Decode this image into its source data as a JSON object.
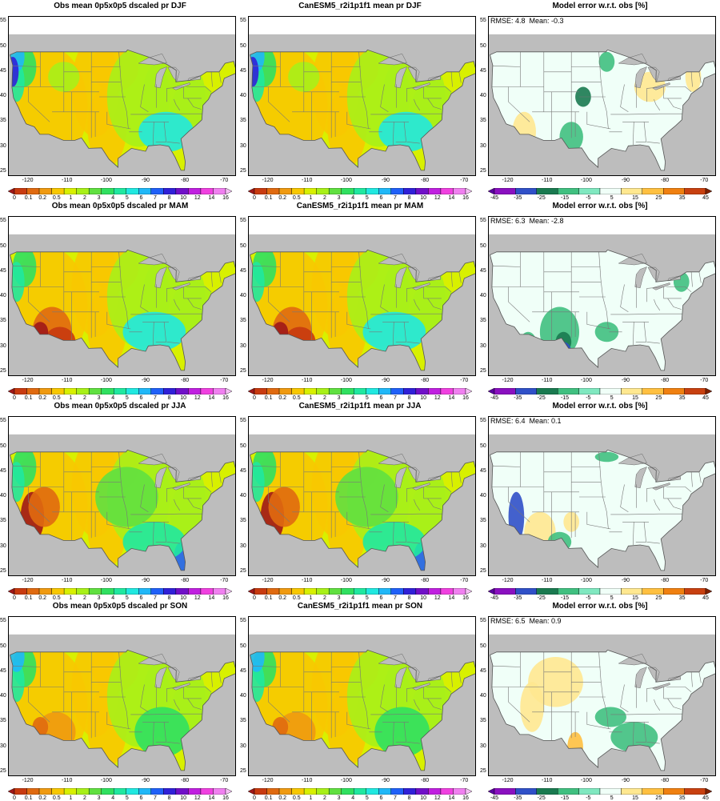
{
  "rows": [
    {
      "season": "DJF",
      "panels": [
        {
          "kind": "obs",
          "title": "Obs mean 0p5x0p5 dscaled pr DJF"
        },
        {
          "kind": "model",
          "title": "CanESM5_r2i1p1f1 mean pr DJF"
        },
        {
          "kind": "error",
          "title": "Model error w.r.t. obs [%]",
          "stats": "RMSE: 4.8  Mean: -0.3"
        }
      ]
    },
    {
      "season": "MAM",
      "panels": [
        {
          "kind": "obs",
          "title": "Obs mean 0p5x0p5 dscaled pr MAM"
        },
        {
          "kind": "model",
          "title": "CanESM5_r2i1p1f1 mean pr MAM"
        },
        {
          "kind": "error",
          "title": "Model error w.r.t. obs [%]",
          "stats": "RMSE: 6.3  Mean: -2.8"
        }
      ]
    },
    {
      "season": "JJA",
      "panels": [
        {
          "kind": "obs",
          "title": "Obs mean 0p5x0p5 dscaled pr JJA"
        },
        {
          "kind": "model",
          "title": "CanESM5_r2i1p1f1 mean pr JJA"
        },
        {
          "kind": "error",
          "title": "Model error w.r.t. obs [%]",
          "stats": "RMSE: 6.4  Mean: 0.1"
        }
      ]
    },
    {
      "season": "SON",
      "panels": [
        {
          "kind": "obs",
          "title": "Obs mean 0p5x0p5 dscaled pr SON"
        },
        {
          "kind": "model",
          "title": "CanESM5_r2i1p1f1 mean pr SON"
        },
        {
          "kind": "error",
          "title": "Model error w.r.t. obs [%]",
          "stats": "RMSE: 6.5  Mean: 0.9"
        }
      ]
    }
  ],
  "axes": {
    "lat_ticks": [
      "55",
      "50",
      "45",
      "40",
      "35",
      "30",
      "25"
    ],
    "lon_ticks": [
      "-120",
      "-110",
      "-100",
      "-90",
      "-80",
      "-70"
    ]
  },
  "precip_scale": {
    "labels": [
      "0",
      "0.1",
      "0.2",
      "0.5",
      "1",
      "2",
      "3",
      "4",
      "5",
      "6",
      "7",
      "8",
      "10",
      "12",
      "14",
      "16"
    ],
    "colors": [
      "#a01818",
      "#c83a10",
      "#e06a10",
      "#f09a10",
      "#f8c800",
      "#d8f000",
      "#a8f018",
      "#60e040",
      "#30e060",
      "#20e8a0",
      "#20e8e0",
      "#20b8f8",
      "#2060f8",
      "#3020d8",
      "#7010c8",
      "#c020e0",
      "#f040e0",
      "#f080f0",
      "#f8c0f8"
    ]
  },
  "error_scale": {
    "labels": [
      "-45",
      "-35",
      "-25",
      "-15",
      "-5",
      "5",
      "15",
      "25",
      "35",
      "45"
    ],
    "colors": [
      "#5a00a0",
      "#8a10c0",
      "#3050c8",
      "#1a7a50",
      "#40c080",
      "#80e8c0",
      "#f0fff8",
      "#ffe890",
      "#ffc040",
      "#f08010",
      "#c84010",
      "#802000"
    ]
  }
}
